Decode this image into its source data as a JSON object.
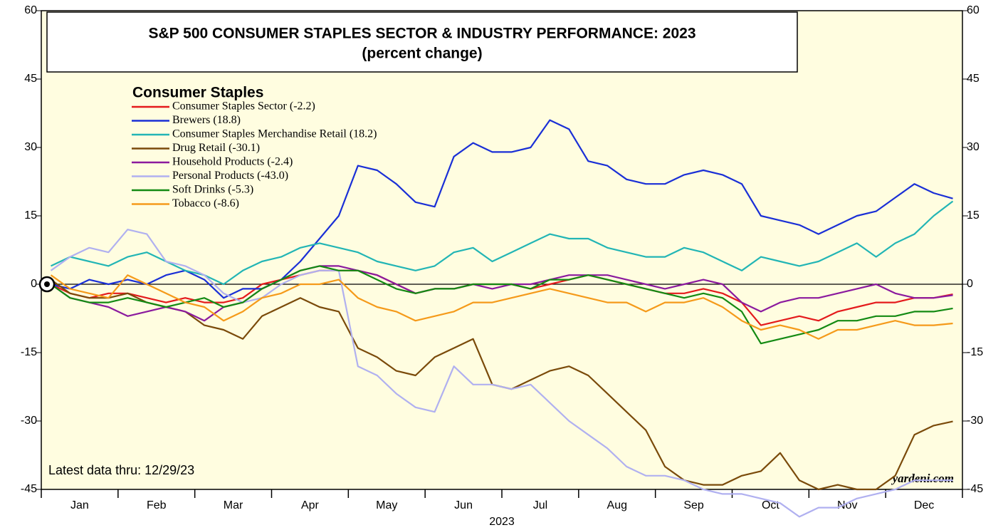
{
  "chart_data": {
    "type": "line",
    "title": "S&P 500 CONSUMER STAPLES SECTOR & INDUSTRY PERFORMANCE: 2023",
    "subtitle": "(percent change)",
    "legend_title": "Consumer Staples",
    "x_label": "2023",
    "annotations": [
      "Latest data thru: 12/29/23",
      "yardeni.com"
    ],
    "categories": [
      null,
      "Jan",
      null,
      null,
      null,
      "Feb",
      null,
      null,
      null,
      "Mar",
      null,
      null,
      null,
      "Apr",
      null,
      null,
      null,
      "May",
      null,
      null,
      null,
      "Jun",
      null,
      null,
      null,
      "Jul",
      null,
      null,
      null,
      "Aug",
      null,
      null,
      null,
      "Sep",
      null,
      null,
      null,
      "Oct",
      null,
      null,
      null,
      "Nov",
      null,
      null,
      null,
      "Dec",
      null,
      null
    ],
    "ylim": [
      -45,
      60
    ],
    "yticks": [
      -45,
      -30,
      -15,
      0,
      15,
      30,
      45,
      60
    ],
    "series": [
      {
        "name": "Consumer Staples Sector (-2.2)",
        "color": "#e41a1c",
        "values": [
          0,
          -2,
          -3,
          -2,
          -2,
          -3,
          -4,
          -3,
          -4,
          -4,
          -3,
          0,
          1,
          2,
          3,
          3,
          3,
          2,
          0,
          -2,
          -1,
          -1,
          0,
          0,
          0,
          -1,
          0,
          1,
          2,
          1,
          0,
          -1,
          -2,
          -2,
          -1,
          -2,
          -4,
          -9,
          -8,
          -7,
          -8,
          -6,
          -5,
          -4,
          -4,
          -3,
          -3,
          -2.2
        ]
      },
      {
        "name": "Brewers (18.8)",
        "color": "#1a2fd6",
        "values": [
          0,
          -1,
          1,
          0,
          1,
          0,
          2,
          3,
          1,
          -3,
          -1,
          -1,
          1,
          5,
          10,
          15,
          26,
          25,
          22,
          18,
          17,
          28,
          31,
          29,
          29,
          30,
          36,
          34,
          27,
          26,
          23,
          22,
          22,
          24,
          25,
          24,
          22,
          15,
          14,
          13,
          11,
          13,
          15,
          16,
          19,
          22,
          20,
          18.8
        ]
      },
      {
        "name": "Consumer Staples Merchandise Retail (18.2)",
        "color": "#22b5b5",
        "values": [
          4,
          6,
          5,
          4,
          6,
          7,
          5,
          3,
          2,
          0,
          3,
          5,
          6,
          8,
          9,
          8,
          7,
          5,
          4,
          3,
          4,
          7,
          8,
          5,
          7,
          9,
          11,
          10,
          10,
          8,
          7,
          6,
          6,
          8,
          7,
          5,
          3,
          6,
          5,
          4,
          5,
          7,
          9,
          6,
          9,
          11,
          15,
          18.2
        ]
      },
      {
        "name": "Drug Retail (-30.1)",
        "color": "#7a4a0a",
        "values": [
          1,
          -2,
          -3,
          -3,
          -2,
          -4,
          -5,
          -6,
          -9,
          -10,
          -12,
          -7,
          -5,
          -3,
          -5,
          -6,
          -14,
          -16,
          -19,
          -20,
          -16,
          -14,
          -12,
          -22,
          -23,
          -21,
          -19,
          -18,
          -20,
          -24,
          -28,
          -32,
          -40,
          -43,
          -44,
          -44,
          -42,
          -41,
          -37,
          -43,
          -45,
          -44,
          -45,
          -45,
          -42,
          -33,
          -31,
          -30.1
        ]
      },
      {
        "name": "Household Products (-2.4)",
        "color": "#8b1a9e",
        "values": [
          0,
          -3,
          -4,
          -5,
          -7,
          -6,
          -5,
          -6,
          -8,
          -5,
          -4,
          -1,
          1,
          3,
          4,
          4,
          3,
          2,
          0,
          -2,
          -1,
          -1,
          0,
          -1,
          0,
          0,
          1,
          2,
          2,
          2,
          1,
          0,
          -1,
          0,
          1,
          0,
          -4,
          -6,
          -4,
          -3,
          -3,
          -2,
          -1,
          0,
          -2,
          -3,
          -3,
          -2.4
        ]
      },
      {
        "name": "Personal Products (-43.0)",
        "color": "#b0b0f0",
        "values": [
          3,
          6,
          8,
          7,
          12,
          11,
          5,
          4,
          2,
          -2,
          -4,
          -3,
          0,
          2,
          3,
          3,
          -18,
          -20,
          -24,
          -27,
          -28,
          -18,
          -22,
          -22,
          -23,
          -22,
          -26,
          -30,
          -33,
          -36,
          -40,
          -42,
          -42,
          -43,
          -45,
          -46,
          -46,
          -47,
          -48,
          -51,
          -49,
          -49,
          -47,
          -46,
          -45,
          -43,
          -43,
          -43.0
        ]
      },
      {
        "name": "Soft Drinks (-5.3)",
        "color": "#138a13",
        "values": [
          0,
          -3,
          -4,
          -4,
          -3,
          -4,
          -5,
          -4,
          -3,
          -5,
          -4,
          -1,
          1,
          3,
          4,
          3,
          3,
          1,
          -1,
          -2,
          -1,
          -1,
          0,
          0,
          0,
          -1,
          1,
          1,
          2,
          1,
          0,
          -1,
          -2,
          -3,
          -2,
          -3,
          -6,
          -13,
          -12,
          -11,
          -10,
          -8,
          -8,
          -7,
          -7,
          -6,
          -6,
          -5.3
        ]
      },
      {
        "name": "Tobacco (-8.6)",
        "color": "#f59a1a",
        "values": [
          2,
          -1,
          -2,
          -3,
          2,
          0,
          -2,
          -4,
          -5,
          -8,
          -6,
          -3,
          -2,
          0,
          0,
          1,
          -3,
          -5,
          -6,
          -8,
          -7,
          -6,
          -4,
          -4,
          -3,
          -2,
          -1,
          -2,
          -3,
          -4,
          -4,
          -6,
          -4,
          -4,
          -3,
          -5,
          -8,
          -10,
          -9,
          -10,
          -12,
          -10,
          -10,
          -9,
          -8,
          -9,
          -9,
          -8.6
        ]
      }
    ]
  }
}
